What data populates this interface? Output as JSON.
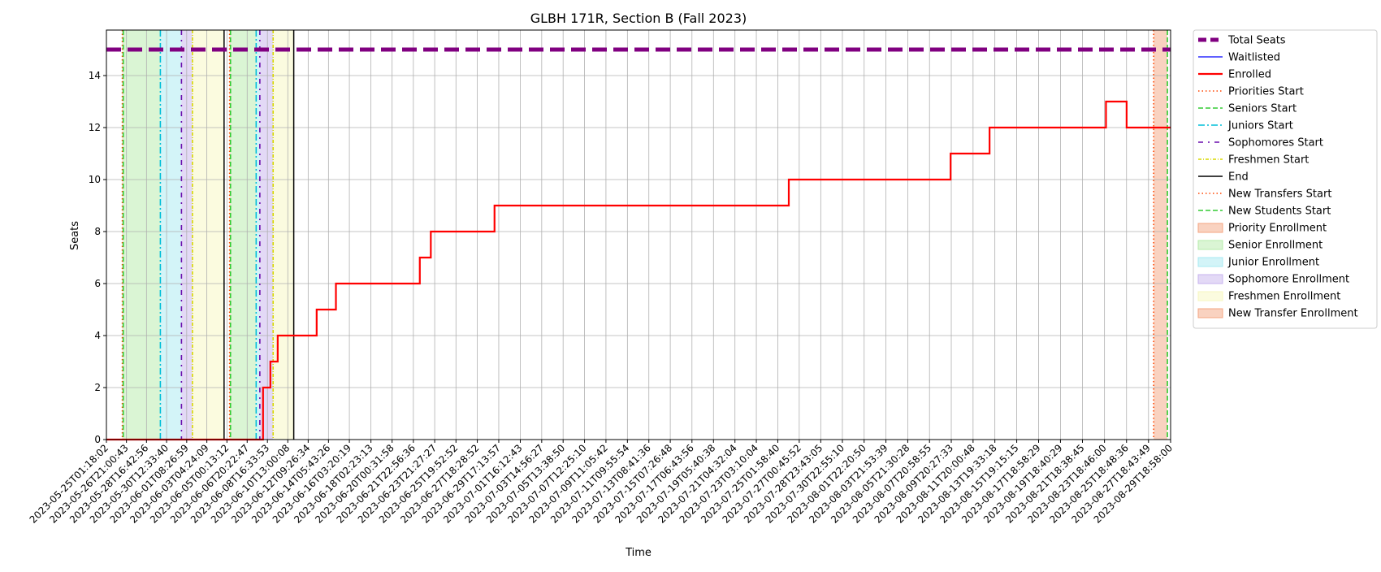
{
  "chart_data": {
    "type": "line",
    "title": "GLBH 171R, Section B (Fall 2023)",
    "xlabel": "Time",
    "ylabel": "Seats",
    "grid": true,
    "legend_position": "outside-right",
    "x_range": [
      "2023-05-25T01:18:02",
      "2023-08-29T18:58:00"
    ],
    "ylim": [
      0,
      15.75
    ],
    "y_ticks": [
      0,
      2,
      4,
      6,
      8,
      10,
      12,
      14
    ],
    "x_tick_labels": [
      "2023-05-25T01:18:02",
      "2023-05-26T21:00:43",
      "2023-05-28T16:42:56",
      "2023-05-30T12:33:40",
      "2023-06-01T08:26:59",
      "2023-06-03T04:24:09",
      "2023-06-05T00:13:12",
      "2023-06-06T20:22:47",
      "2023-06-08T16:33:53",
      "2023-06-10T13:00:08",
      "2023-06-12T09:26:34",
      "2023-06-14T05:43:26",
      "2023-06-16T03:20:19",
      "2023-06-18T02:23:13",
      "2023-06-20T00:31:58",
      "2023-06-21T22:56:36",
      "2023-06-23T21:27:27",
      "2023-06-25T19:52:52",
      "2023-06-27T18:28:52",
      "2023-06-29T17:13:57",
      "2023-07-01T16:12:43",
      "2023-07-03T14:56:27",
      "2023-07-05T13:38:50",
      "2023-07-07T12:25:10",
      "2023-07-09T11:05:42",
      "2023-07-11T09:55:54",
      "2023-07-13T08:41:36",
      "2023-07-15T07:26:48",
      "2023-07-17T06:43:56",
      "2023-07-19T05:40:38",
      "2023-07-21T04:32:04",
      "2023-07-23T03:10:04",
      "2023-07-25T01:58:40",
      "2023-07-27T00:45:52",
      "2023-07-28T23:43:05",
      "2023-07-30T22:55:10",
      "2023-08-01T22:20:50",
      "2023-08-03T21:53:39",
      "2023-08-05T21:30:28",
      "2023-08-07T20:58:55",
      "2023-08-09T20:27:33",
      "2023-08-11T20:00:48",
      "2023-08-13T19:33:18",
      "2023-08-15T19:15:15",
      "2023-08-17T18:58:29",
      "2023-08-19T18:40:29",
      "2023-08-21T18:38:45",
      "2023-08-23T18:46:00",
      "2023-08-25T18:48:36",
      "2023-08-27T18:43:49",
      "2023-08-29T18:58:00"
    ],
    "series": [
      {
        "name": "Total Seats",
        "color": "#800080",
        "style": "dashed-thick",
        "points": [
          [
            "2023-05-25T01:18:02",
            15
          ],
          [
            "2023-08-29T18:58:00",
            15
          ]
        ]
      },
      {
        "name": "Waitlisted",
        "color": "#0000ff",
        "style": "solid-thin",
        "points": [
          [
            "2023-05-25T01:18:02",
            0
          ],
          [
            "2023-08-29T18:58:00",
            0
          ]
        ]
      },
      {
        "name": "Enrolled",
        "color": "#ff0000",
        "style": "step",
        "points": [
          [
            "2023-05-25T01:18:02",
            0
          ],
          [
            "2023-06-08T07:00:00",
            2
          ],
          [
            "2023-06-08T23:00:00",
            3
          ],
          [
            "2023-06-09T15:00:00",
            4
          ],
          [
            "2023-06-13T04:00:00",
            5
          ],
          [
            "2023-06-14T22:00:00",
            6
          ],
          [
            "2023-06-22T13:00:00",
            7
          ],
          [
            "2023-06-23T13:00:00",
            8
          ],
          [
            "2023-06-29T08:00:00",
            9
          ],
          [
            "2023-07-26T02:00:00",
            10
          ],
          [
            "2023-08-09T19:00:00",
            11
          ],
          [
            "2023-08-13T08:00:00",
            12
          ],
          [
            "2023-08-23T22:00:00",
            13
          ],
          [
            "2023-08-25T19:00:00",
            12
          ],
          [
            "2023-08-29T18:58:00",
            12
          ]
        ]
      }
    ],
    "event_lines": [
      {
        "name": "Priorities Start",
        "color": "#ff4500",
        "style": "dotted",
        "times": [
          "2023-05-26T12:00:00",
          "2023-06-05T06:00:00",
          "2023-08-28T06:00:00"
        ]
      },
      {
        "name": "Seniors Start",
        "color": "#33cc33",
        "style": "dashed",
        "times": [
          "2023-05-26T14:00:00",
          "2023-06-05T08:00:00",
          "2023-08-29T12:00:00"
        ]
      },
      {
        "name": "Juniors Start",
        "color": "#00bfd8",
        "style": "dashdot",
        "times": [
          "2023-05-29T23:00:00",
          "2023-06-07T16:00:00"
        ]
      },
      {
        "name": "Sophomores Start",
        "color": "#6a0dad",
        "style": "dashdot-sparse",
        "times": [
          "2023-05-31T21:00:00",
          "2023-06-08T00:00:00"
        ]
      },
      {
        "name": "Freshmen Start",
        "color": "#d8d800",
        "style": "dashdot-dense",
        "times": [
          "2023-06-01T21:00:00",
          "2023-06-09T05:00:00"
        ]
      },
      {
        "name": "End",
        "color": "#000000",
        "style": "solid",
        "times": [
          "2023-06-04T18:00:00",
          "2023-06-11T02:00:00"
        ]
      },
      {
        "name": "New Transfers Start",
        "color": "#ff4500",
        "style": "dotted"
      },
      {
        "name": "New Students Start",
        "color": "#33cc33",
        "style": "dashed"
      }
    ],
    "enrollment_windows": [
      {
        "name": "Priority Enrollment",
        "color": "#f4a582",
        "spans": [
          [
            "2023-05-26T12:00:00",
            "2023-05-26T14:00:00"
          ],
          [
            "2023-06-05T06:00:00",
            "2023-06-05T08:00:00"
          ]
        ]
      },
      {
        "name": "Senior Enrollment",
        "color": "#b5ecaa",
        "spans": [
          [
            "2023-05-26T14:00:00",
            "2023-05-29T23:00:00"
          ],
          [
            "2023-06-05T08:00:00",
            "2023-06-07T16:00:00"
          ]
        ]
      },
      {
        "name": "Junior Enrollment",
        "color": "#a7eaf2",
        "spans": [
          [
            "2023-05-29T23:00:00",
            "2023-05-31T21:00:00"
          ],
          [
            "2023-06-07T16:00:00",
            "2023-06-08T00:00:00"
          ]
        ]
      },
      {
        "name": "Sophomore Enrollment",
        "color": "#c7b3ee",
        "spans": [
          [
            "2023-05-31T21:00:00",
            "2023-06-01T21:00:00"
          ],
          [
            "2023-06-08T00:00:00",
            "2023-06-09T05:00:00"
          ]
        ]
      },
      {
        "name": "Freshmen Enrollment",
        "color": "#f7f7bf",
        "spans": [
          [
            "2023-06-01T21:00:00",
            "2023-06-04T18:00:00"
          ],
          [
            "2023-06-09T05:00:00",
            "2023-06-11T02:00:00"
          ]
        ]
      },
      {
        "name": "New Transfer Enrollment",
        "color": "#f4a582",
        "spans": [
          [
            "2023-08-28T06:00:00",
            "2023-08-29T12:00:00"
          ]
        ]
      }
    ]
  }
}
